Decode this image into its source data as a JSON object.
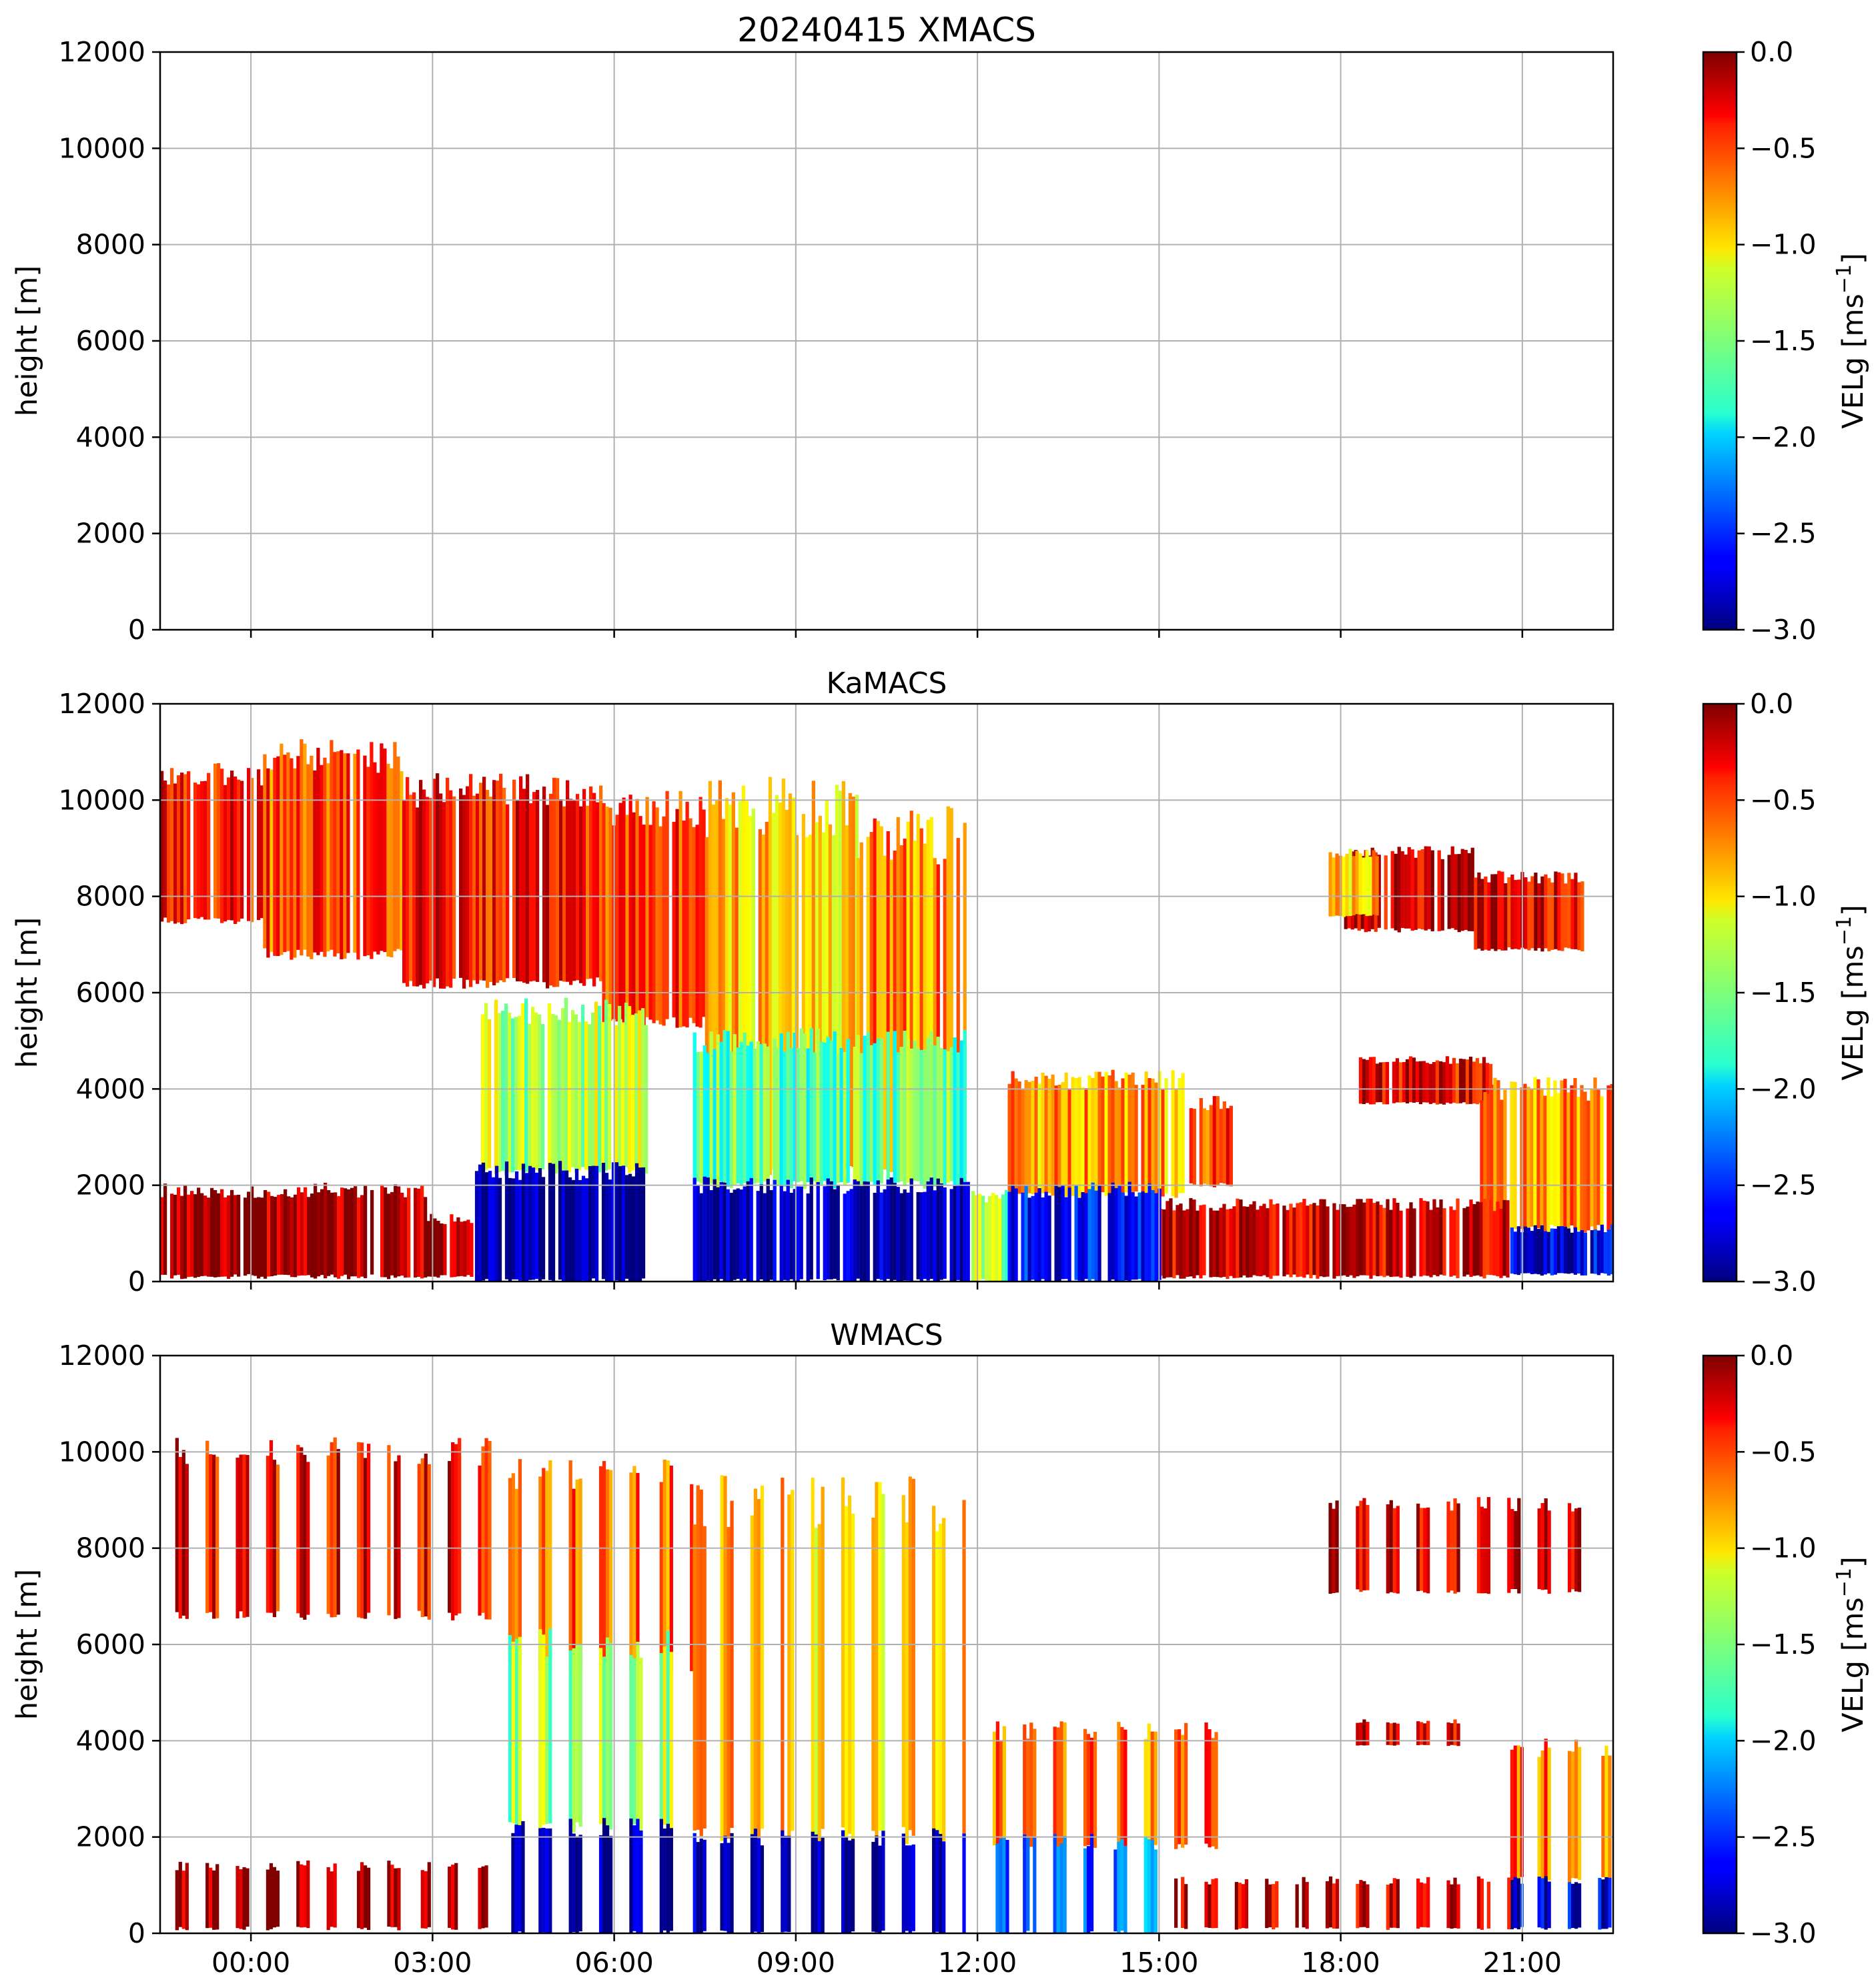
{
  "chart_data": [
    {
      "type": "heatmap",
      "title": "20240415 XMACS",
      "ylabel": "height [m]",
      "ylim": [
        0,
        12000
      ],
      "yticks": [
        "0",
        "2000",
        "4000",
        "6000",
        "8000",
        "10000",
        "12000"
      ],
      "xlim_hours": [
        -1.5,
        22.5
      ],
      "xticks_hours": [
        0,
        3,
        6,
        9,
        12,
        15,
        18,
        21
      ],
      "xtick_labels": [],
      "grid": true,
      "colorbar": {
        "label_main": "VELg [ms",
        "label_exp": "−1",
        "label_end": "]",
        "range": [
          -3.0,
          0.0
        ],
        "ticks": [
          "0.0",
          "−0.5",
          "−1.0",
          "−1.5",
          "−2.0",
          "−2.5",
          "−3.0"
        ],
        "colormap": "jet"
      },
      "regions": []
    },
    {
      "type": "heatmap",
      "title": "KaMACS",
      "ylabel": "height [m]",
      "ylim": [
        0,
        12000
      ],
      "yticks": [
        "0",
        "2000",
        "4000",
        "6000",
        "8000",
        "10000",
        "12000"
      ],
      "xlim_hours": [
        -1.5,
        22.5
      ],
      "xticks_hours": [
        0,
        3,
        6,
        9,
        12,
        15,
        18,
        21
      ],
      "xtick_labels": [],
      "grid": true,
      "colorbar": {
        "label_main": "VELg [ms",
        "label_exp": "−1",
        "label_end": "]",
        "range": [
          -3.0,
          0.0
        ],
        "ticks": [
          "0.0",
          "−0.5",
          "−1.0",
          "−1.5",
          "−2.0",
          "−2.5",
          "−3.0"
        ],
        "colormap": "jet"
      },
      "regions": [
        {
          "t0": -1.5,
          "t1": 0.2,
          "h0": 7500,
          "h1": 10500,
          "v": -0.45
        },
        {
          "t0": 0.2,
          "t1": 2.5,
          "h0": 6800,
          "h1": 10900,
          "v": -0.6
        },
        {
          "t0": 2.5,
          "t1": 5.8,
          "h0": 6200,
          "h1": 10200,
          "v": -0.4
        },
        {
          "t0": 5.8,
          "t1": 7.5,
          "h0": 5400,
          "h1": 9800,
          "v": -0.55
        },
        {
          "t0": 7.5,
          "t1": 10.0,
          "h0": 2200,
          "h1": 9800,
          "v": -0.95
        },
        {
          "t0": 10.0,
          "t1": 11.8,
          "h0": 2200,
          "h1": 9300,
          "v": -0.75
        },
        {
          "t0": 3.8,
          "t1": 6.5,
          "h0": 2300,
          "h1": 5600,
          "v": -1.35
        },
        {
          "t0": 7.3,
          "t1": 11.8,
          "h0": 2000,
          "h1": 5000,
          "v": -1.6
        },
        {
          "t0": 12.5,
          "t1": 15.4,
          "h0": 1800,
          "h1": 4200,
          "v": -0.85
        },
        {
          "t0": 15.5,
          "t1": 16.2,
          "h0": 2000,
          "h1": 3700,
          "v": -0.55
        },
        {
          "t0": 18.0,
          "t1": 20.2,
          "h0": 7300,
          "h1": 8900,
          "v": -0.25
        },
        {
          "t0": 20.2,
          "t1": 22.0,
          "h0": 6900,
          "h1": 8400,
          "v": -0.3
        },
        {
          "t0": 17.8,
          "t1": 18.6,
          "h0": 7600,
          "h1": 8900,
          "v": -0.9
        },
        {
          "t0": 18.3,
          "t1": 20.5,
          "h0": 3700,
          "h1": 4600,
          "v": -0.35
        },
        {
          "t0": 20.3,
          "t1": 22.5,
          "h0": 1100,
          "h1": 4000,
          "v": -0.8
        },
        {
          "t0": -1.5,
          "t1": 2.9,
          "h0": 100,
          "h1": 1900,
          "v": -0.12
        },
        {
          "t0": 2.9,
          "t1": 3.8,
          "h0": 100,
          "h1": 1300,
          "v": -0.15
        },
        {
          "t0": 15.0,
          "t1": 20.8,
          "h0": 100,
          "h1": 1600,
          "v": -0.25
        },
        {
          "t0": 3.7,
          "t1": 6.5,
          "h0": 0,
          "h1": 2300,
          "v": -2.95
        },
        {
          "t0": 7.3,
          "t1": 11.9,
          "h0": 0,
          "h1": 2000,
          "v": -2.9
        },
        {
          "t0": 11.9,
          "t1": 12.5,
          "h0": 0,
          "h1": 1800,
          "v": -1.4
        },
        {
          "t0": 12.5,
          "t1": 15.0,
          "h0": 0,
          "h1": 1900,
          "v": -2.6
        },
        {
          "t0": 20.8,
          "t1": 22.5,
          "h0": 150,
          "h1": 1100,
          "v": -2.7
        }
      ]
    },
    {
      "type": "heatmap",
      "title": "WMACS",
      "ylabel": "height [m]",
      "ylim": [
        0,
        12000
      ],
      "yticks": [
        "0",
        "2000",
        "4000",
        "6000",
        "8000",
        "10000",
        "12000"
      ],
      "xlim_hours": [
        -1.5,
        22.5
      ],
      "xticks_hours": [
        0,
        3,
        6,
        9,
        12,
        15,
        18,
        21
      ],
      "xtick_labels": [
        "00:00",
        "03:00",
        "06:00",
        "09:00",
        "12:00",
        "15:00",
        "18:00",
        "21:00"
      ],
      "grid": true,
      "colorbar": {
        "label_main": "VELg [ms",
        "label_exp": "−1",
        "label_end": "]",
        "range": [
          -3.0,
          0.0
        ],
        "ticks": [
          "0.0",
          "−0.5",
          "−1.0",
          "−1.5",
          "−2.0",
          "−2.5",
          "−3.0"
        ],
        "colormap": "jet"
      },
      "columns": {
        "period_hours": 0.5,
        "width_hours": 0.22,
        "segments": [
          {
            "t0": -1.5,
            "t1": 4.0,
            "h0": 6600,
            "h1": 10000,
            "v": -0.35
          },
          {
            "t0": 4.0,
            "t1": 7.3,
            "h0": 5500,
            "h1": 9600,
            "v": -0.65
          },
          {
            "t0": 7.3,
            "t1": 11.8,
            "h0": 2000,
            "h1": 8900,
            "v": -0.95
          },
          {
            "t0": 4.0,
            "t1": 7.0,
            "h0": 2200,
            "h1": 6000,
            "v": -1.4
          },
          {
            "t0": 12.0,
            "t1": 16.0,
            "h0": 1800,
            "h1": 4200,
            "v": -0.7
          },
          {
            "t0": 17.8,
            "t1": 22.0,
            "h0": 7100,
            "h1": 8900,
            "v": -0.25
          },
          {
            "t0": 18.0,
            "t1": 20.0,
            "h0": 3900,
            "h1": 4400,
            "v": -0.3
          },
          {
            "t0": 20.8,
            "t1": 22.5,
            "h0": 1100,
            "h1": 3800,
            "v": -0.7
          },
          {
            "t0": 4.3,
            "t1": 7.0,
            "h0": 0,
            "h1": 2200,
            "v": -2.95
          },
          {
            "t0": 7.3,
            "t1": 11.8,
            "h0": 0,
            "h1": 2000,
            "v": -2.9
          },
          {
            "t0": 12.3,
            "t1": 15.0,
            "h0": 0,
            "h1": 1900,
            "v": -2.3
          },
          {
            "t0": 20.8,
            "t1": 22.5,
            "h0": 100,
            "h1": 1100,
            "v": -2.7
          },
          {
            "t0": -1.5,
            "t1": 4.0,
            "h0": 100,
            "h1": 1400,
            "v": -0.1
          },
          {
            "t0": 15.0,
            "t1": 20.8,
            "h0": 100,
            "h1": 1100,
            "v": -0.2
          }
        ]
      }
    }
  ]
}
